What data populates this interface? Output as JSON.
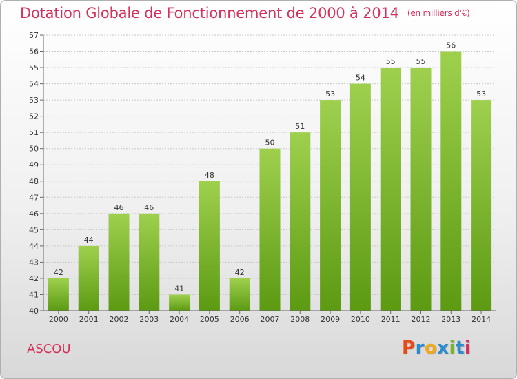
{
  "title": "Dotation Globale de Fonctionnement de 2000 à 2014",
  "unit": "(en milliers d'€)",
  "commune": "ASCOU",
  "logo": {
    "letters": [
      "P",
      "r",
      "o",
      "x",
      "i",
      "t",
      "i"
    ],
    "colors": [
      "#e84a16",
      "#2a8bd0",
      "#f0a91c",
      "#2a8bd0",
      "#7ab32e",
      "#2a8bd0",
      "#d6305a"
    ]
  },
  "colors": {
    "title": "#d6305a",
    "bar_light": "#9ed04e",
    "bar_dark": "#5c9a12",
    "grid": "#c8c8c8"
  },
  "chart_data": {
    "type": "bar",
    "categories": [
      "2000",
      "2001",
      "2002",
      "2003",
      "2004",
      "2005",
      "2006",
      "2007",
      "2008",
      "2009",
      "2010",
      "2011",
      "2012",
      "2013",
      "2014"
    ],
    "values": [
      42,
      44,
      46,
      46,
      41,
      48,
      42,
      50,
      51,
      53,
      54,
      55,
      55,
      56,
      53
    ],
    "data_labels": [
      "42",
      "44",
      "46",
      "46",
      "41",
      "48",
      "42",
      "50",
      "51",
      "53",
      "54",
      "55",
      "55",
      "56",
      "53"
    ],
    "y_ticks": [
      "40",
      "41",
      "42",
      "43",
      "44",
      "45",
      "46",
      "47",
      "48",
      "49",
      "50",
      "51",
      "52",
      "53",
      "54",
      "55",
      "56",
      "57"
    ],
    "ylim": [
      40,
      57
    ],
    "grid": true,
    "xlabel": "",
    "ylabel": ""
  }
}
